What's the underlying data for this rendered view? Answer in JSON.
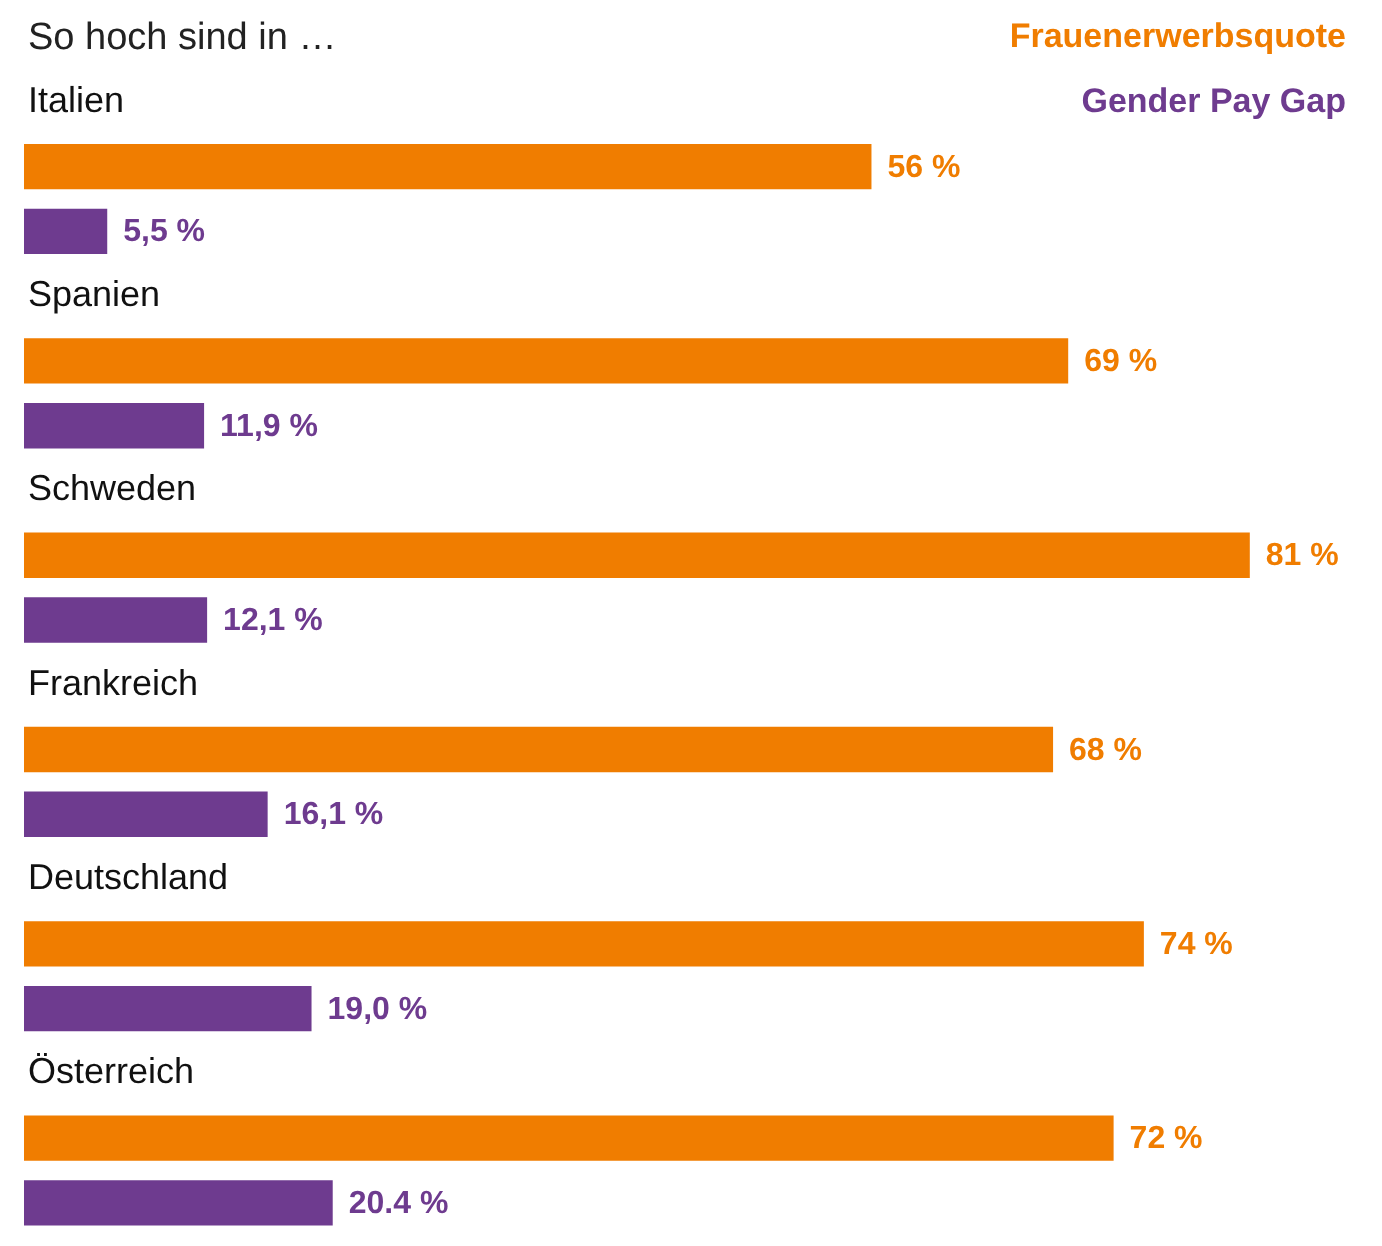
{
  "chart_data": {
    "type": "bar",
    "orientation": "horizontal",
    "title": "So hoch sind in …",
    "categories": [
      "Italien",
      "Spanien",
      "Schweden",
      "Frankreich",
      "Deutschland",
      "Österreich"
    ],
    "series": [
      {
        "name": "Frauenerwerbsquote",
        "color": "#f07d00",
        "values": [
          56,
          69,
          81,
          68,
          74,
          72
        ],
        "value_labels": [
          "56 %",
          "69 %",
          "81 %",
          "68 %",
          "74 %",
          "72 %"
        ]
      },
      {
        "name": "Gender Pay Gap",
        "color": "#6e3b8f",
        "values": [
          5.5,
          11.9,
          12.1,
          16.1,
          19.0,
          20.4
        ],
        "value_labels": [
          "5,5 %",
          "11,9 %",
          "12,1 %",
          "16,1 %",
          "19,0 %",
          "20.4 %"
        ]
      }
    ],
    "legend": "top right"
  }
}
